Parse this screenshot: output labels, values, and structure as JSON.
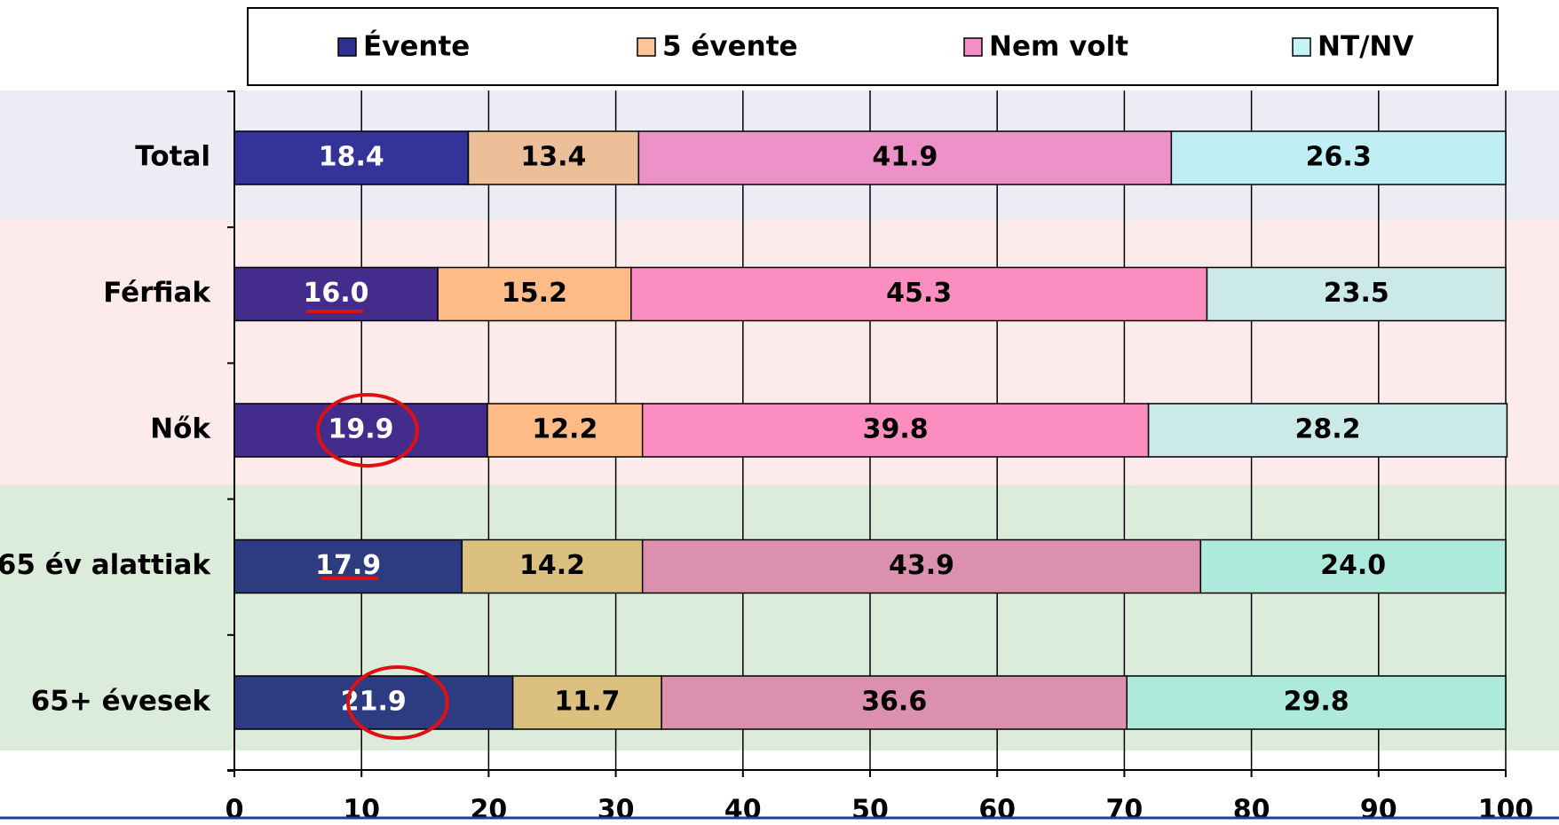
{
  "chart_data": {
    "type": "stacked-bar",
    "categories": [
      "Total",
      "Férfiak",
      "Nők",
      "65 év alattiak",
      "65+ évesek"
    ],
    "series": [
      {
        "name": "Évente",
        "color": "#2e3192",
        "colors": [
          "#33339a",
          "#442c8c",
          "#442c8c",
          "#2d3b80",
          "#2d3b80"
        ],
        "label_color": "#ffffff",
        "values": [
          18.4,
          16.0,
          19.9,
          17.9,
          21.9
        ],
        "value_labels": [
          "18.4",
          "16.0",
          "19.9",
          "17.9",
          "21.9"
        ]
      },
      {
        "name": "5 évente",
        "color": "#fbc598",
        "colors": [
          "#ecbf99",
          "#fdbb88",
          "#fdbb88",
          "#dcc080",
          "#dcc080"
        ],
        "label_color": "#000000",
        "values": [
          13.4,
          15.2,
          12.2,
          14.2,
          11.7
        ],
        "value_labels": [
          "13.4",
          "15.2",
          "12.2",
          "14.2",
          "11.7"
        ]
      },
      {
        "name": "Nem volt",
        "color": "#f28fc8",
        "colors": [
          "#ec92c8",
          "#fc8dc0",
          "#fc8dc0",
          "#db90ad",
          "#db90ad"
        ],
        "label_color": "#000000",
        "values": [
          41.9,
          45.3,
          39.8,
          43.9,
          36.6
        ],
        "value_labels": [
          "41.9",
          "45.3",
          "39.8",
          "43.9",
          "36.6"
        ]
      },
      {
        "name": "NT/NV",
        "color": "#c5f3f5",
        "colors": [
          "#bfeef5",
          "#cce9e9",
          "#cce9e9",
          "#aeeadb",
          "#aeeadb"
        ],
        "label_color": "#000000",
        "values": [
          26.3,
          23.5,
          28.2,
          24.0,
          29.8
        ],
        "value_labels": [
          "26.3",
          "23.5",
          "28.2",
          "24.0",
          "29.8"
        ]
      }
    ],
    "xlim": [
      0,
      100
    ],
    "xticks": [
      0,
      10,
      20,
      30,
      40,
      50,
      60,
      70,
      80,
      90,
      100
    ],
    "grid": true,
    "legend": "top"
  }
}
